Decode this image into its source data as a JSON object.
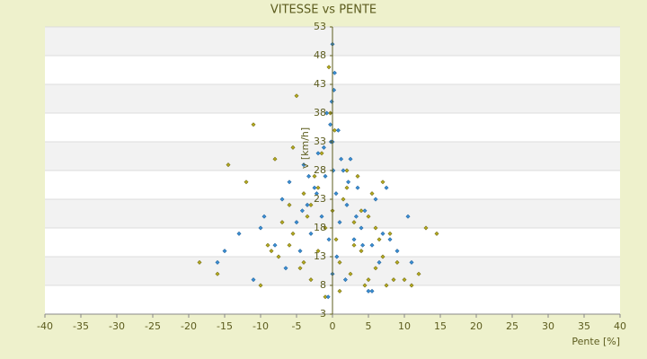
{
  "chart_data": {
    "type": "scatter",
    "title": "VITESSE vs PENTE",
    "x_label": "Pente [%]",
    "y_label": "v [km/h]",
    "xlim": [
      -40,
      40
    ],
    "xticks": [
      -40,
      -35,
      -30,
      -25,
      -20,
      -15,
      -10,
      -5,
      0,
      5,
      10,
      15,
      20,
      25,
      30,
      35,
      40
    ],
    "ylim": [
      3,
      53
    ],
    "yticks": [
      3,
      8,
      13,
      18,
      23,
      28,
      33,
      38,
      43,
      48,
      53
    ],
    "grid": true,
    "series": [
      {
        "color": "#b5ab1e",
        "x": [
          -18.5,
          -16,
          -14.5,
          -12,
          -10,
          -9,
          -8,
          -7.5,
          -7,
          -6,
          -5.5,
          -5,
          -4.5,
          -4,
          -3.5,
          -3,
          -2.5,
          -2,
          -1.5,
          -1,
          -0.5,
          0,
          0.5,
          1,
          1.5,
          2,
          2.5,
          3,
          3.5,
          4,
          4.5,
          5,
          5.5,
          6,
          6.5,
          7,
          7.5,
          8,
          9,
          10,
          11,
          12,
          13,
          14.5,
          -5.5,
          -3,
          -1,
          1,
          3,
          5,
          -2,
          2,
          -6,
          6,
          -4,
          4,
          0.3,
          -0.3,
          -8.5,
          7,
          -11,
          8.5
        ],
        "values": [
          12,
          10,
          29,
          26,
          8,
          15,
          30,
          13,
          19,
          22,
          17,
          41,
          11,
          24,
          20,
          9,
          27,
          14,
          31,
          18,
          46,
          21,
          16,
          12,
          23,
          25,
          10,
          19,
          27,
          14,
          8,
          20,
          24,
          11,
          16,
          13,
          8,
          17,
          12,
          9,
          8,
          10,
          18,
          17,
          32,
          22,
          6,
          7,
          15,
          9,
          25,
          28,
          15,
          18,
          12,
          21,
          35,
          38,
          14,
          26,
          36,
          9
        ]
      },
      {
        "color": "#3a8fd4",
        "x": [
          -16,
          -15,
          -13,
          -11,
          -10,
          -9.5,
          -8,
          -7,
          -6.5,
          -6,
          -5,
          -4.5,
          -4,
          -3.5,
          -3,
          -2.5,
          -2,
          -1.5,
          -1,
          -0.8,
          -0.5,
          -0.2,
          0,
          0.2,
          0.5,
          0.8,
          1,
          1.5,
          2,
          2.5,
          3,
          3.5,
          4,
          4.5,
          5,
          5.5,
          6,
          6.5,
          7,
          7.5,
          8,
          9,
          10.5,
          11,
          -0.3,
          0.3,
          0.1,
          -0.1,
          0,
          1.2,
          -1.2,
          2.2,
          -2.2,
          3.3,
          -3.3,
          4.2,
          -4.2,
          5.5,
          0.6,
          -0.6,
          0,
          1.8
        ],
        "values": [
          12,
          14,
          17,
          9,
          18,
          20,
          15,
          23,
          11,
          26,
          19,
          14,
          29,
          22,
          17,
          25,
          31,
          20,
          27,
          38,
          16,
          33,
          50,
          42,
          24,
          35,
          19,
          28,
          22,
          30,
          16,
          25,
          18,
          21,
          7,
          15,
          23,
          12,
          17,
          25,
          16,
          14,
          20,
          12,
          36,
          45,
          28,
          40,
          10,
          30,
          32,
          26,
          24,
          20,
          27,
          15,
          21,
          7,
          13,
          6,
          33,
          9
        ]
      }
    ]
  }
}
